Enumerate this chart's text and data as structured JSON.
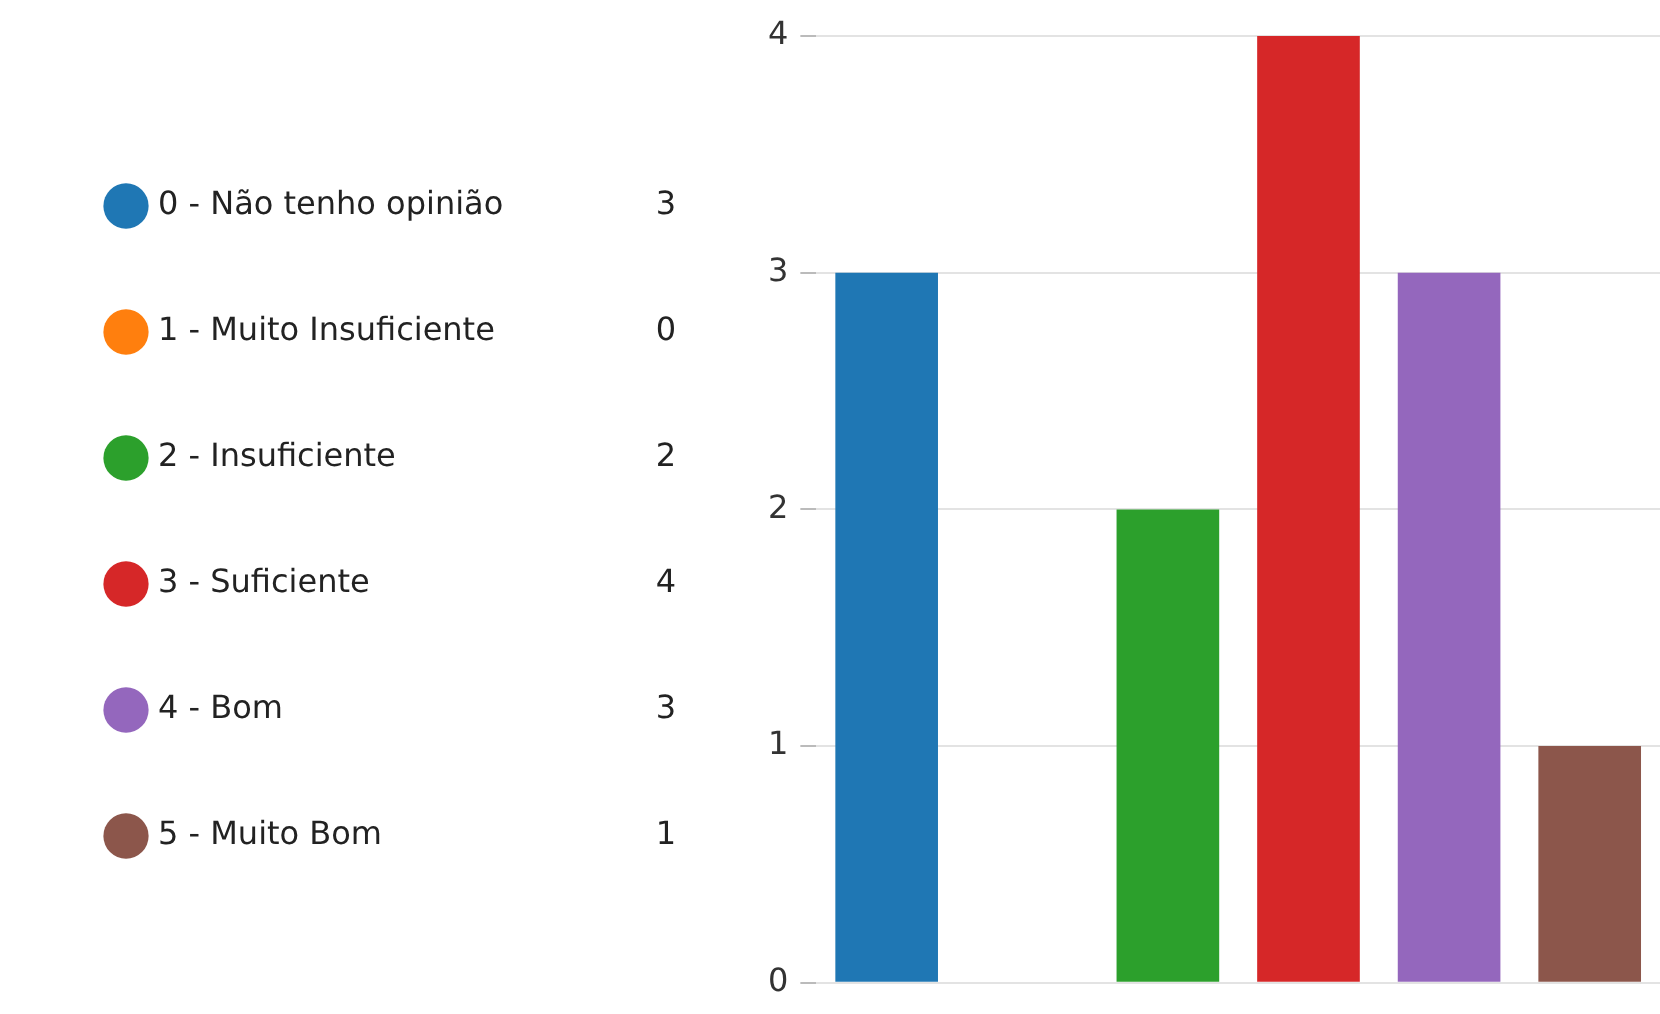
{
  "chart_data": {
    "type": "bar",
    "categories": [
      null,
      null,
      null,
      null,
      null,
      null
    ],
    "series": [
      {
        "name": "0 - Não tenho opinião",
        "color": "#1f77b4",
        "values": [
          3,
          null,
          null,
          null,
          null,
          null
        ]
      },
      {
        "name": "1 - Muito Insuficiente",
        "color": "#ff7f0e",
        "values": [
          null,
          0,
          null,
          null,
          null,
          null
        ]
      },
      {
        "name": "2 - Insuficiente",
        "color": "#2ca02c",
        "values": [
          null,
          null,
          2,
          null,
          null,
          null
        ]
      },
      {
        "name": "3 - Suficiente",
        "color": "#d62728",
        "values": [
          null,
          null,
          null,
          4,
          null,
          null
        ]
      },
      {
        "name": "4 - Bom",
        "color": "#9467bd",
        "values": [
          null,
          null,
          null,
          null,
          3,
          null
        ]
      },
      {
        "name": "5 - Muito Bom",
        "color": "#8c564b",
        "values": [
          null,
          null,
          null,
          null,
          null,
          1
        ]
      }
    ],
    "ylim": [
      0,
      4
    ],
    "yticks": [
      0,
      1,
      2,
      3,
      4
    ],
    "grid": "y",
    "legend": "left",
    "tick_labels": "y",
    "annotations": [
      "3",
      "0",
      "2",
      "4",
      "3",
      "1"
    ]
  }
}
